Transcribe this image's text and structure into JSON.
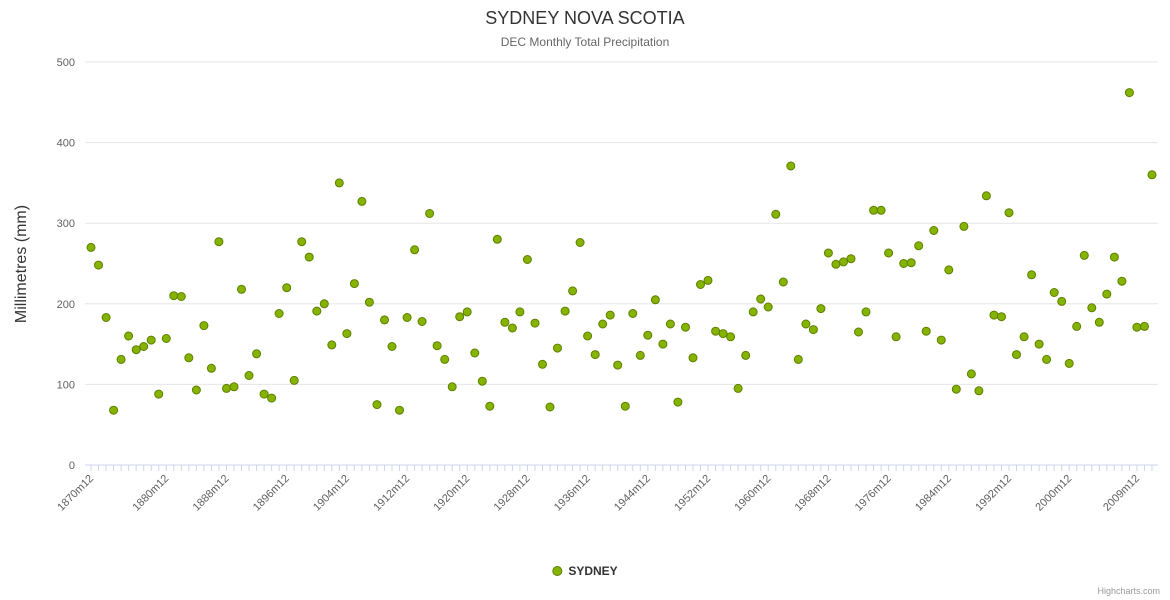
{
  "title": "SYDNEY NOVA SCOTIA",
  "subtitle": "DEC Monthly Total Precipitation",
  "y_axis_title": "Millimetres (mm)",
  "legend": {
    "label": "SYDNEY"
  },
  "credits": "Highcharts.com",
  "colors": {
    "marker_fill": "#86b300",
    "marker_stroke": "#5c7f00",
    "grid": "#e6e6e6",
    "axis_line": "#ccd6eb",
    "tick": "#ccd6eb",
    "title_text": "#333333",
    "subtitle_text": "#666666",
    "axis_label_text": "#606060"
  },
  "chart_data": {
    "type": "scatter",
    "title": "SYDNEY NOVA SCOTIA",
    "subtitle": "DEC Monthly Total Precipitation",
    "xlabel": "",
    "ylabel": "Millimetres (mm)",
    "ylim": [
      0,
      500
    ],
    "y_ticks": [
      0,
      100,
      200,
      300,
      400,
      500
    ],
    "x_range": [
      1870,
      2011
    ],
    "grid": true,
    "legend_position": "bottom",
    "x_tick_labels": [
      "1870m12",
      "1880m12",
      "1888m12",
      "1896m12",
      "1904m12",
      "1912m12",
      "1920m12",
      "1928m12",
      "1936m12",
      "1944m12",
      "1952m12",
      "1960m12",
      "1968m12",
      "1976m12",
      "1984m12",
      "1992m12",
      "2000m12",
      "2009m12"
    ],
    "x_tick_label_years": [
      1870,
      1880,
      1888,
      1896,
      1904,
      1912,
      1920,
      1928,
      1936,
      1944,
      1952,
      1960,
      1968,
      1976,
      1984,
      1992,
      2000,
      2009
    ],
    "series": [
      {
        "name": "SYDNEY",
        "points": [
          [
            1870,
            270
          ],
          [
            1871,
            248
          ],
          [
            1872,
            183
          ],
          [
            1873,
            68
          ],
          [
            1874,
            131
          ],
          [
            1875,
            160
          ],
          [
            1876,
            143
          ],
          [
            1877,
            147
          ],
          [
            1878,
            155
          ],
          [
            1879,
            88
          ],
          [
            1880,
            157
          ],
          [
            1881,
            210
          ],
          [
            1882,
            209
          ],
          [
            1883,
            133
          ],
          [
            1884,
            93
          ],
          [
            1885,
            173
          ],
          [
            1886,
            120
          ],
          [
            1887,
            277
          ],
          [
            1888,
            95
          ],
          [
            1889,
            97
          ],
          [
            1890,
            218
          ],
          [
            1891,
            111
          ],
          [
            1892,
            138
          ],
          [
            1893,
            88
          ],
          [
            1894,
            83
          ],
          [
            1895,
            188
          ],
          [
            1896,
            220
          ],
          [
            1897,
            105
          ],
          [
            1898,
            277
          ],
          [
            1899,
            258
          ],
          [
            1900,
            191
          ],
          [
            1901,
            200
          ],
          [
            1902,
            149
          ],
          [
            1903,
            350
          ],
          [
            1904,
            163
          ],
          [
            1905,
            225
          ],
          [
            1906,
            327
          ],
          [
            1907,
            202
          ],
          [
            1908,
            75
          ],
          [
            1909,
            180
          ],
          [
            1910,
            147
          ],
          [
            1911,
            68
          ],
          [
            1912,
            183
          ],
          [
            1913,
            267
          ],
          [
            1914,
            178
          ],
          [
            1915,
            312
          ],
          [
            1916,
            148
          ],
          [
            1917,
            131
          ],
          [
            1918,
            97
          ],
          [
            1919,
            184
          ],
          [
            1920,
            190
          ],
          [
            1921,
            139
          ],
          [
            1922,
            104
          ],
          [
            1923,
            73
          ],
          [
            1924,
            280
          ],
          [
            1925,
            177
          ],
          [
            1926,
            170
          ],
          [
            1927,
            190
          ],
          [
            1928,
            255
          ],
          [
            1929,
            176
          ],
          [
            1930,
            125
          ],
          [
            1931,
            72
          ],
          [
            1932,
            145
          ],
          [
            1933,
            191
          ],
          [
            1934,
            216
          ],
          [
            1935,
            276
          ],
          [
            1936,
            160
          ],
          [
            1937,
            137
          ],
          [
            1938,
            175
          ],
          [
            1939,
            186
          ],
          [
            1940,
            124
          ],
          [
            1941,
            73
          ],
          [
            1942,
            188
          ],
          [
            1943,
            136
          ],
          [
            1944,
            161
          ],
          [
            1945,
            205
          ],
          [
            1946,
            150
          ],
          [
            1947,
            175
          ],
          [
            1948,
            78
          ],
          [
            1949,
            171
          ],
          [
            1950,
            133
          ],
          [
            1951,
            224
          ],
          [
            1952,
            229
          ],
          [
            1953,
            166
          ],
          [
            1954,
            163
          ],
          [
            1955,
            159
          ],
          [
            1956,
            95
          ],
          [
            1957,
            136
          ],
          [
            1958,
            190
          ],
          [
            1959,
            206
          ],
          [
            1960,
            196
          ],
          [
            1961,
            311
          ],
          [
            1962,
            227
          ],
          [
            1963,
            371
          ],
          [
            1964,
            131
          ],
          [
            1965,
            175
          ],
          [
            1966,
            168
          ],
          [
            1967,
            194
          ],
          [
            1968,
            263
          ],
          [
            1969,
            249
          ],
          [
            1970,
            252
          ],
          [
            1971,
            256
          ],
          [
            1972,
            165
          ],
          [
            1973,
            190
          ],
          [
            1974,
            316
          ],
          [
            1975,
            316
          ],
          [
            1976,
            263
          ],
          [
            1977,
            159
          ],
          [
            1978,
            250
          ],
          [
            1979,
            251
          ],
          [
            1980,
            272
          ],
          [
            1981,
            166
          ],
          [
            1982,
            291
          ],
          [
            1983,
            155
          ],
          [
            1984,
            242
          ],
          [
            1985,
            94
          ],
          [
            1986,
            296
          ],
          [
            1987,
            113
          ],
          [
            1988,
            92
          ],
          [
            1989,
            334
          ],
          [
            1990,
            186
          ],
          [
            1991,
            184
          ],
          [
            1992,
            313
          ],
          [
            1993,
            137
          ],
          [
            1994,
            159
          ],
          [
            1995,
            236
          ],
          [
            1996,
            150
          ],
          [
            1997,
            131
          ],
          [
            1998,
            214
          ],
          [
            1999,
            203
          ],
          [
            2000,
            126
          ],
          [
            2001,
            172
          ],
          [
            2002,
            260
          ],
          [
            2003,
            195
          ],
          [
            2004,
            177
          ],
          [
            2005,
            212
          ],
          [
            2006,
            258
          ],
          [
            2007,
            228
          ],
          [
            2008,
            462
          ],
          [
            2009,
            171
          ],
          [
            2010,
            172
          ],
          [
            2011,
            360
          ]
        ]
      }
    ]
  }
}
